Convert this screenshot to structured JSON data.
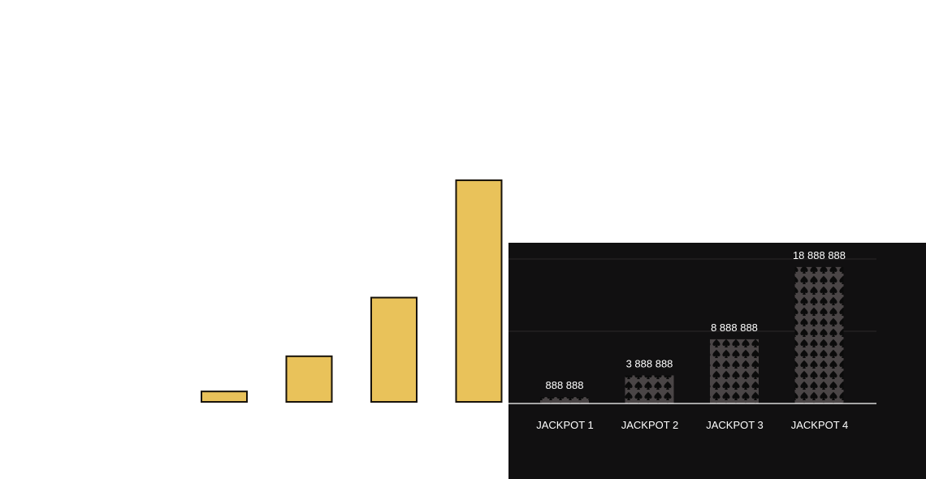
{
  "chart_data": [
    {
      "type": "bar",
      "title": "",
      "xlabel": "",
      "ylabel": "",
      "categories": [
        "",
        "",
        "",
        ""
      ],
      "values": [
        888888,
        3888888,
        8888888,
        18888888
      ],
      "ylim": [
        0,
        20000000
      ],
      "grid": false,
      "colors": {
        "bar": "#e9c25a",
        "outline": "#17120a"
      }
    },
    {
      "type": "bar",
      "title": "",
      "xlabel": "",
      "ylabel": "",
      "categories": [
        "JACKPOT 1",
        "JACKPOT 2",
        "JACKPOT 3",
        "JACKPOT 4"
      ],
      "values": [
        888888,
        3888888,
        8888888,
        18888888
      ],
      "value_labels": [
        "888 888",
        "3 888 888",
        "8 888 888",
        "18 888 888"
      ],
      "ylim": [
        0,
        20000000
      ],
      "grid": true,
      "pattern_icon": "spade-icon",
      "colors": {
        "panel": "#111011",
        "bar": "#4a4546",
        "pattern": "#0b0b0b",
        "text": "#ffffff",
        "grid": "#2a2829"
      }
    }
  ]
}
